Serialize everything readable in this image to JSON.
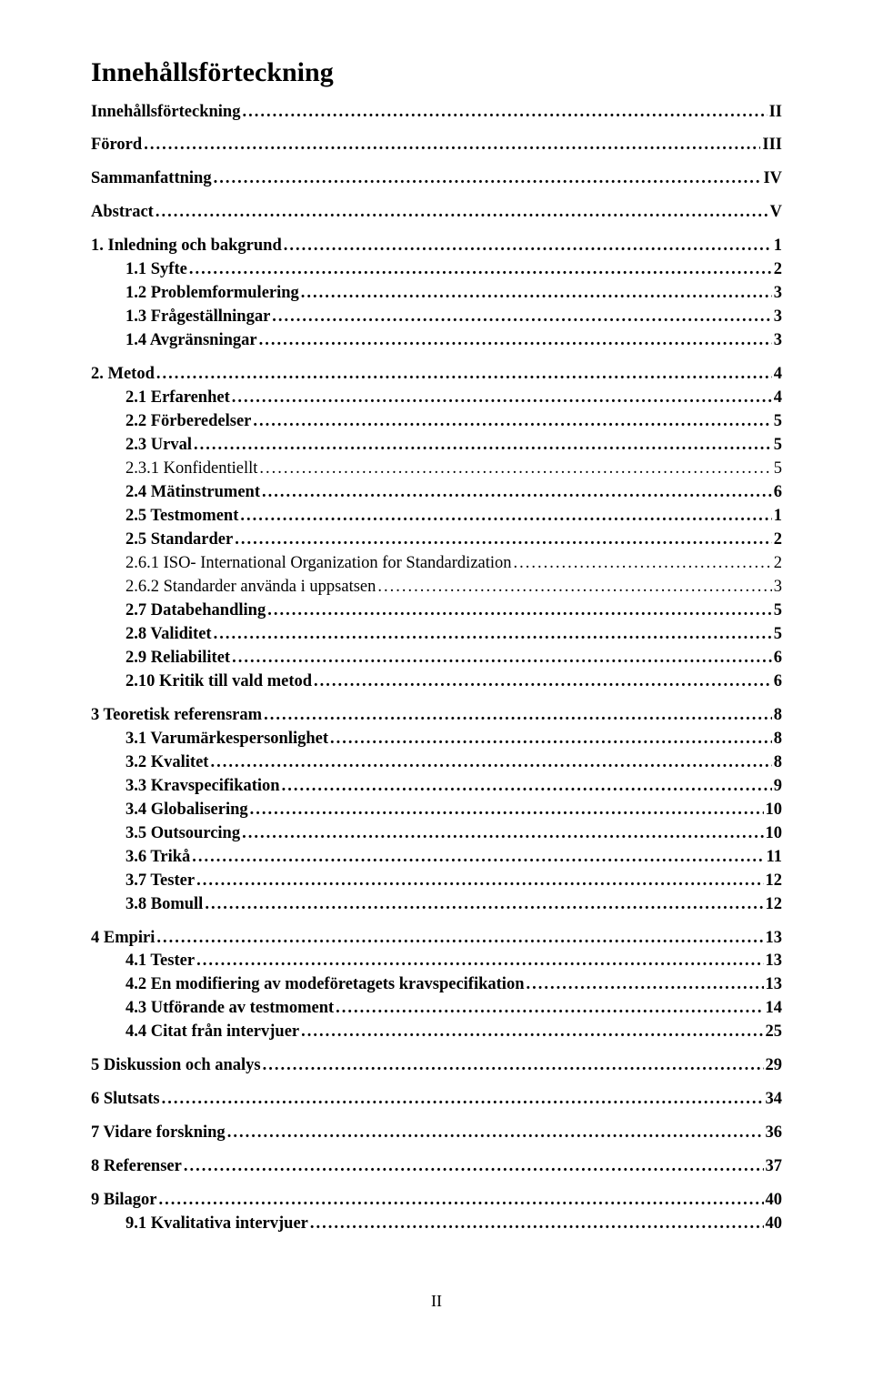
{
  "title": "Innehållsförteckning",
  "dots": "............................................................................................................................................................................................................",
  "footer": "II",
  "entries": [
    {
      "label": "Innehållsförteckning",
      "page": "II",
      "level": 0,
      "bold": true
    },
    {
      "label": "Förord",
      "page": "III",
      "level": 0,
      "bold": true
    },
    {
      "label": "Sammanfattning",
      "page": "IV",
      "level": 0,
      "bold": true
    },
    {
      "label": "Abstract",
      "page": "V",
      "level": 0,
      "bold": true
    },
    {
      "label": "1.   Inledning och bakgrund",
      "page": "1",
      "level": 0,
      "bold": true
    },
    {
      "label": "1.1    Syfte",
      "page": "2",
      "level": 1,
      "bold": true
    },
    {
      "label": "1.2    Problemformulering",
      "page": "3",
      "level": 1,
      "bold": true
    },
    {
      "label": "1.3    Frågeställningar",
      "page": "3",
      "level": 1,
      "bold": true
    },
    {
      "label": "1.4    Avgränsningar",
      "page": "3",
      "level": 1,
      "bold": true
    },
    {
      "label": "2.   Metod",
      "page": "4",
      "level": 0,
      "bold": true
    },
    {
      "label": "2.1 Erfarenhet",
      "page": "4",
      "level": 1,
      "bold": true
    },
    {
      "label": "2.2 Förberedelser",
      "page": "5",
      "level": 1,
      "bold": true
    },
    {
      "label": "2.3 Urval",
      "page": "5",
      "level": 1,
      "bold": true
    },
    {
      "label": "2.3.1 Konfidentiellt",
      "page": "5",
      "level": 2,
      "bold": false
    },
    {
      "label": "2.4    Mätinstrument",
      "page": "6",
      "level": 1,
      "bold": true
    },
    {
      "label": "2.5 Testmoment",
      "page": "1",
      "level": 1,
      "bold": true
    },
    {
      "label": "2.5    Standarder",
      "page": "2",
      "level": 1,
      "bold": true
    },
    {
      "label": "2.6.1 ISO- International Organization for Standardization",
      "page": "2",
      "level": 2,
      "bold": false
    },
    {
      "label": "2.6.2 Standarder använda i uppsatsen",
      "page": "3",
      "level": 2,
      "bold": false
    },
    {
      "label": "2.7 Databehandling",
      "page": "5",
      "level": 1,
      "bold": true
    },
    {
      "label": "2.8 Validitet",
      "page": "5",
      "level": 1,
      "bold": true
    },
    {
      "label": "2.9 Reliabilitet",
      "page": "6",
      "level": 1,
      "bold": true
    },
    {
      "label": "2.10 Kritik till vald metod",
      "page": "6",
      "level": 1,
      "bold": true
    },
    {
      "label": "3    Teoretisk referensram",
      "page": "8",
      "level": 0,
      "bold": true
    },
    {
      "label": "3.1    Varumärkespersonlighet",
      "page": "8",
      "level": 1,
      "bold": true
    },
    {
      "label": "3.2    Kvalitet",
      "page": "8",
      "level": 1,
      "bold": true
    },
    {
      "label": "3.3    Kravspecifikation",
      "page": "9",
      "level": 1,
      "bold": true
    },
    {
      "label": "3.4    Globalisering",
      "page": "10",
      "level": 1,
      "bold": true
    },
    {
      "label": "3.5    Outsourcing",
      "page": "10",
      "level": 1,
      "bold": true
    },
    {
      "label": "3.6    Trikå",
      "page": "11",
      "level": 1,
      "bold": true
    },
    {
      "label": "3.7    Tester",
      "page": "12",
      "level": 1,
      "bold": true
    },
    {
      "label": "3.8    Bomull",
      "page": "12",
      "level": 1,
      "bold": true
    },
    {
      "label": "4    Empiri",
      "page": "13",
      "level": 0,
      "bold": true
    },
    {
      "label": "4.1    Tester",
      "page": "13",
      "level": 1,
      "bold": true
    },
    {
      "label": "4.2    En modifiering av modeföretagets kravspecifikation",
      "page": "13",
      "level": 1,
      "bold": true
    },
    {
      "label": "4.3    Utförande av testmoment",
      "page": "14",
      "level": 1,
      "bold": true
    },
    {
      "label": "4.4    Citat från intervjuer",
      "page": "25",
      "level": 1,
      "bold": true
    },
    {
      "label": "5    Diskussion och analys",
      "page": "29",
      "level": 0,
      "bold": true
    },
    {
      "label": "6    Slutsats",
      "page": "34",
      "level": 0,
      "bold": true
    },
    {
      "label": "7    Vidare forskning",
      "page": "36",
      "level": 0,
      "bold": true
    },
    {
      "label": "8    Referenser",
      "page": "37",
      "level": 0,
      "bold": true
    },
    {
      "label": "9    Bilagor",
      "page": "40",
      "level": 0,
      "bold": true
    },
    {
      "label": "9.1 Kvalitativa intervjuer",
      "page": "40",
      "level": 1,
      "bold": true
    }
  ],
  "spacing": {
    "gap_before_top_section": 12,
    "line_gap": 1
  }
}
